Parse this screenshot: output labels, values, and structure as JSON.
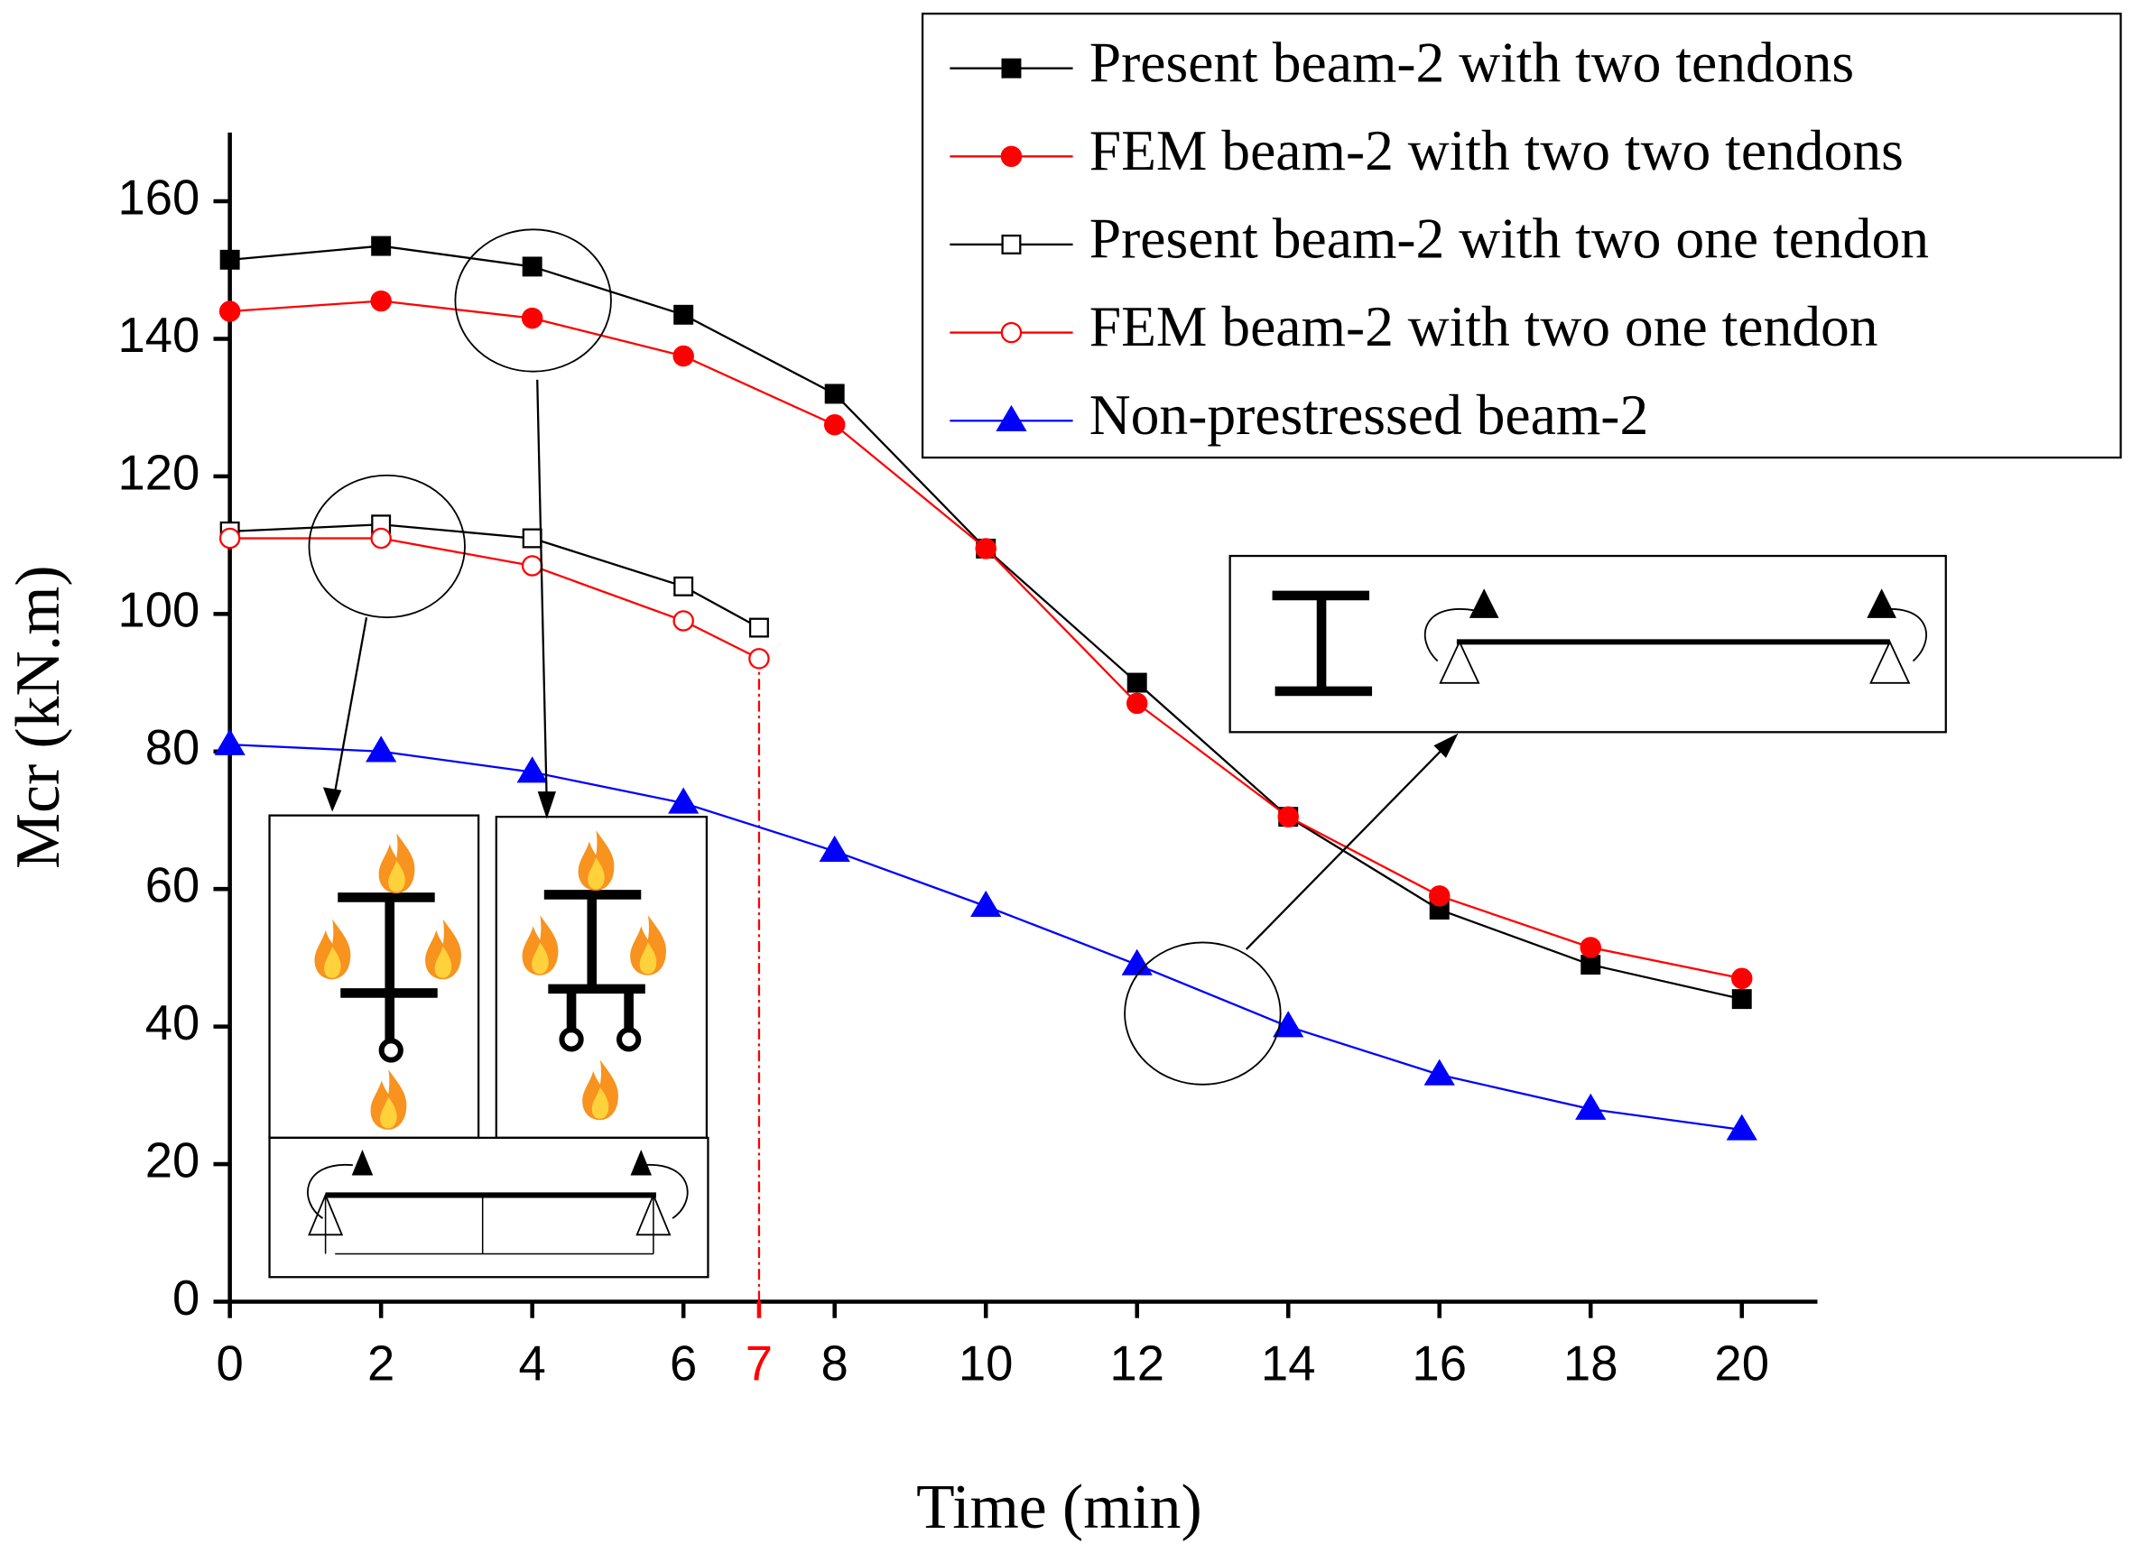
{
  "chart_data": {
    "type": "line",
    "xlabel": "Time (min)",
    "ylabel": "Mcr (kN.m)",
    "xlim": [
      0,
      21
    ],
    "ylim": [
      0,
      170
    ],
    "xticks": [
      0,
      2,
      4,
      6,
      7,
      8,
      10,
      12,
      14,
      16,
      18,
      20
    ],
    "yticks": [
      0,
      20,
      40,
      60,
      80,
      100,
      120,
      140,
      160
    ],
    "highlight_x": 7,
    "highlight_color": "#ff0000",
    "legend": "upper right",
    "series": [
      {
        "name": "Present beam-2 with two tendons",
        "color": "#000000",
        "marker": "square",
        "filled": true,
        "x": [
          0,
          2,
          4,
          6,
          8,
          10,
          12,
          14,
          16,
          18,
          20
        ],
        "values": [
          151.5,
          153.5,
          150.5,
          143.5,
          132,
          109.5,
          90,
          70.5,
          57,
          49,
          44
        ]
      },
      {
        "name": "FEM beam-2 with two two tendons",
        "color": "#ff0000",
        "marker": "circle",
        "filled": true,
        "x": [
          0,
          2,
          4,
          6,
          8,
          10,
          12,
          14,
          16,
          18,
          20
        ],
        "values": [
          144,
          145.5,
          143,
          137.5,
          127.5,
          109.5,
          87,
          70.5,
          59,
          51.5,
          47
        ]
      },
      {
        "name": "Present beam-2 with two one tendon",
        "color": "#000000",
        "marker": "square",
        "filled": false,
        "x": [
          0,
          2,
          4,
          6,
          7
        ],
        "values": [
          112,
          113,
          111,
          104,
          98
        ]
      },
      {
        "name": "FEM beam-2 with two one tendon",
        "color": "#ff0000",
        "marker": "circle",
        "filled": false,
        "x": [
          0,
          2,
          4,
          6,
          7
        ],
        "values": [
          111,
          111,
          107,
          99,
          93.5
        ]
      },
      {
        "name": "Non-prestressed beam-2",
        "color": "#0000ff",
        "marker": "triangle",
        "filled": true,
        "x": [
          0,
          2,
          4,
          6,
          8,
          10,
          12,
          14,
          16,
          18,
          20
        ],
        "values": [
          81,
          80,
          77,
          72.5,
          65.5,
          57.5,
          49,
          40,
          33,
          28,
          25
        ]
      }
    ]
  }
}
